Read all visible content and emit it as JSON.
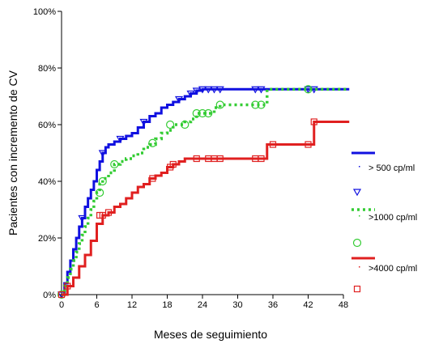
{
  "chart_data": {
    "type": "line",
    "step": true,
    "title": "",
    "xlabel": "Meses de seguimiento",
    "ylabel": "Pacientes con incremento de CV",
    "xlim": [
      0,
      48
    ],
    "ylim": [
      0,
      100
    ],
    "x_ticks": [
      0,
      6,
      12,
      18,
      24,
      30,
      36,
      42,
      48
    ],
    "y_ticks": [
      0,
      20,
      40,
      60,
      80,
      100
    ],
    "y_tick_labels": [
      "0%",
      "20%",
      "40%",
      "60%",
      "80%",
      "100%"
    ],
    "grid": false,
    "legend_position": "right",
    "series": [
      {
        "name": "> 500 cp/ml",
        "color": "#1010e0",
        "line_style": "solid",
        "marker": "triangle-down",
        "x": [
          0,
          0.5,
          1,
          1.5,
          2,
          2.5,
          3,
          3.5,
          4,
          4.5,
          5,
          5.5,
          6,
          6.5,
          7,
          7.5,
          8,
          9,
          10,
          11,
          12,
          13,
          14,
          15,
          16,
          17,
          18,
          19,
          20,
          21,
          22,
          23,
          24,
          25,
          26,
          27,
          28,
          30,
          32,
          33,
          34,
          35,
          36,
          40,
          42,
          43,
          49
        ],
        "y": [
          0,
          4,
          8,
          12,
          16,
          20,
          24,
          27,
          31,
          34,
          37,
          40,
          44,
          47,
          50,
          52,
          53,
          54,
          55,
          56,
          57,
          59,
          61,
          63,
          64,
          66,
          67,
          68,
          69,
          70,
          71,
          72,
          72.5,
          72.5,
          72.5,
          72.5,
          72.5,
          72.5,
          72.5,
          72.5,
          72.5,
          72.5,
          72.5,
          72.5,
          72.5,
          72.5,
          72.5
        ],
        "markers_x": [
          0,
          3.5,
          7,
          10,
          14,
          20,
          22,
          23,
          24,
          25,
          26,
          27,
          33,
          34,
          42,
          43
        ],
        "markers_y": [
          0,
          27,
          50,
          55,
          61,
          69,
          71,
          72,
          72.5,
          72.5,
          72.5,
          72.5,
          72.5,
          72.5,
          72.5,
          72.5
        ]
      },
      {
        "name": ">1000 cp/ml",
        "color": "#33cc33",
        "line_style": "dotted",
        "marker": "circle",
        "x": [
          0,
          0.5,
          1,
          1.5,
          2,
          2.5,
          3,
          3.5,
          4,
          4.5,
          5,
          5.5,
          6,
          6.5,
          7,
          8,
          9,
          10,
          11,
          12,
          13,
          14,
          15,
          16,
          17,
          18,
          19,
          20,
          21,
          22,
          23,
          24,
          25,
          26,
          27,
          28,
          30,
          32,
          34,
          35,
          36,
          40,
          42,
          43,
          49
        ],
        "y": [
          0,
          3,
          6,
          9,
          12,
          15,
          18,
          21,
          24,
          27,
          30,
          33,
          36,
          39,
          41,
          43,
          46,
          47,
          48,
          49,
          50,
          52,
          53,
          55,
          57,
          58,
          60,
          60,
          61,
          62,
          64,
          64,
          64,
          66,
          67,
          67,
          67,
          67,
          67,
          72.5,
          72.5,
          72.5,
          72.5,
          72.5,
          72.5
        ],
        "markers_x": [
          0,
          6.5,
          7,
          9,
          15.5,
          18.5,
          21,
          23,
          24,
          25,
          27,
          33,
          34,
          42
        ],
        "markers_y": [
          0,
          36,
          40,
          46,
          53.5,
          60,
          60,
          64,
          64,
          64,
          67,
          67,
          67,
          72.5
        ]
      },
      {
        "name": ">4000 cp/ml",
        "color": "#e02020",
        "line_style": "solid",
        "marker": "square",
        "x": [
          0,
          1,
          2,
          3,
          4,
          5,
          6,
          7,
          8,
          9,
          10,
          11,
          12,
          13,
          14,
          15,
          16,
          17,
          18,
          19,
          20,
          21,
          22,
          23,
          24,
          25,
          26,
          27,
          28,
          30,
          32,
          33,
          34,
          35,
          36,
          40,
          41,
          42,
          43,
          49
        ],
        "y": [
          0,
          3,
          6,
          10,
          14,
          19,
          25,
          28,
          29,
          31,
          32,
          34,
          36,
          38,
          39,
          41,
          42,
          43,
          45,
          46,
          47,
          48,
          48,
          48,
          48,
          48,
          48,
          48,
          48,
          48,
          48,
          48,
          48,
          53,
          53,
          53,
          53,
          53,
          61,
          61
        ],
        "markers_x": [
          0,
          1,
          6.5,
          7,
          8,
          15.5,
          18.5,
          19,
          23,
          25,
          26,
          27,
          33,
          34,
          36,
          42,
          43
        ],
        "markers_y": [
          0,
          3,
          28,
          28,
          29,
          41,
          45,
          46,
          48,
          48,
          48,
          48,
          48,
          48,
          53,
          53,
          61
        ]
      }
    ]
  }
}
